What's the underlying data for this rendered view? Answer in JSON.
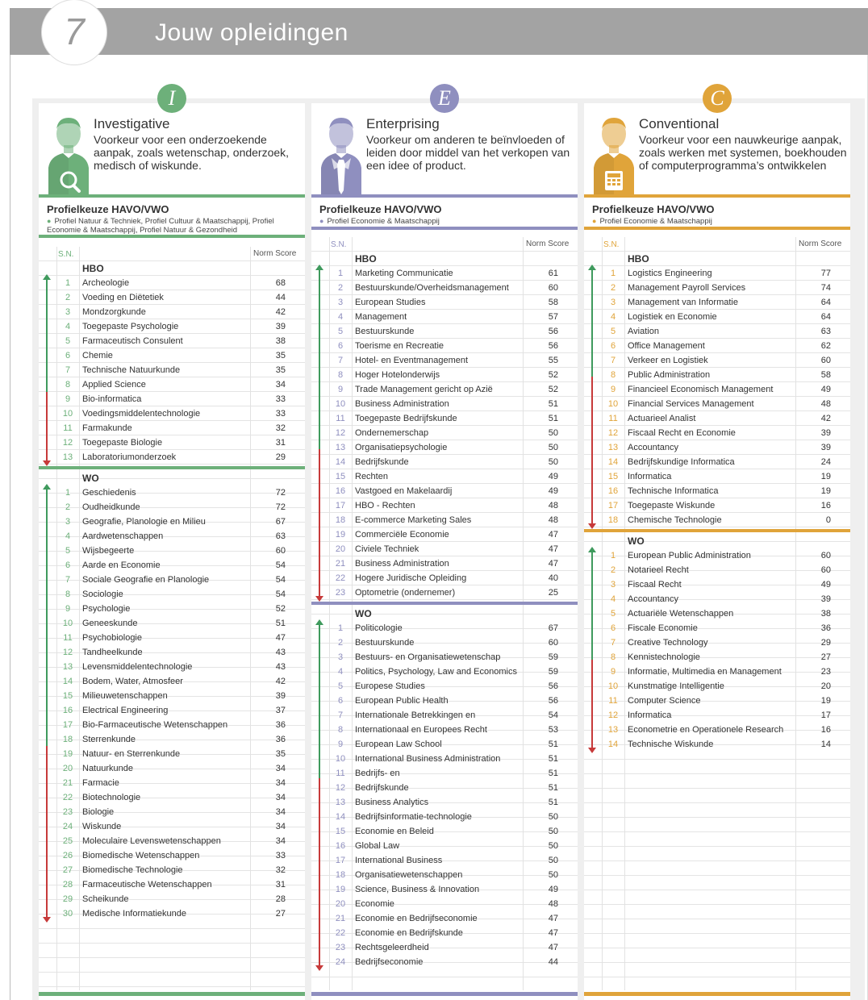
{
  "header": {
    "number": "7",
    "title": "Jouw opleidingen"
  },
  "colors": {
    "I": "#6db07a",
    "E": "#8f8fbf",
    "C": "#e0a43a",
    "red": "#c73a3a",
    "green": "#3f9a5d"
  },
  "table_headers": {
    "sn": "S.N.",
    "norm_score": "Norm Score"
  },
  "columns": [
    {
      "letter": "I",
      "title": "Investigative",
      "description": "Voorkeur voor een onderzoekende aanpak, zoals wetenschap, onderzoek, medisch of wiskunde.",
      "icon": "magnifier-icon",
      "profile_title": "Profielkeuze HAVO/VWO",
      "profile_desc": "Profiel Natuur & Techniek, Profiel Cultuur & Maatschappij, Profiel Economie & Maatschappij, Profiel Natuur & Gezondheid",
      "sections": [
        {
          "name": "HBO",
          "rows": [
            {
              "n": "1",
              "name": "Archeologie",
              "score": "68"
            },
            {
              "n": "2",
              "name": "Voeding en Diëtetiek",
              "score": "44"
            },
            {
              "n": "3",
              "name": "Mondzorgkunde",
              "score": "42"
            },
            {
              "n": "4",
              "name": "Toegepaste Psychologie",
              "score": "39"
            },
            {
              "n": "5",
              "name": "Farmaceutisch Consulent",
              "score": "38"
            },
            {
              "n": "6",
              "name": "Chemie",
              "score": "35"
            },
            {
              "n": "7",
              "name": "Technische Natuurkunde",
              "score": "35"
            },
            {
              "n": "8",
              "name": "Applied Science",
              "score": "34"
            },
            {
              "n": "9",
              "name": "Bio-informatica",
              "score": "33"
            },
            {
              "n": "10",
              "name": "Voedingsmiddelentechnologie",
              "score": "33"
            },
            {
              "n": "11",
              "name": "Farmakunde",
              "score": "32"
            },
            {
              "n": "12",
              "name": "Toegepaste Biologie",
              "score": "31"
            },
            {
              "n": "13",
              "name": "Laboratoriumonderzoek",
              "score": "29"
            }
          ]
        },
        {
          "name": "WO",
          "rows": [
            {
              "n": "1",
              "name": "Geschiedenis",
              "score": "72"
            },
            {
              "n": "2",
              "name": "Oudheidkunde",
              "score": "72"
            },
            {
              "n": "3",
              "name": "Geografie, Planologie en Milieu",
              "score": "67"
            },
            {
              "n": "4",
              "name": "Aardwetenschappen",
              "score": "63"
            },
            {
              "n": "5",
              "name": "Wijsbegeerte",
              "score": "60"
            },
            {
              "n": "6",
              "name": "Aarde en Economie",
              "score": "54"
            },
            {
              "n": "7",
              "name": "Sociale Geografie en Planologie",
              "score": "54"
            },
            {
              "n": "8",
              "name": "Sociologie",
              "score": "54"
            },
            {
              "n": "9",
              "name": "Psychologie",
              "score": "52"
            },
            {
              "n": "10",
              "name": "Geneeskunde",
              "score": "51"
            },
            {
              "n": "11",
              "name": "Psychobiologie",
              "score": "47"
            },
            {
              "n": "12",
              "name": "Tandheelkunde",
              "score": "43"
            },
            {
              "n": "13",
              "name": "Levensmiddelentechnologie",
              "score": "43"
            },
            {
              "n": "14",
              "name": "Bodem, Water, Atmosfeer",
              "score": "42"
            },
            {
              "n": "15",
              "name": "Milieuwetenschappen",
              "score": "39"
            },
            {
              "n": "16",
              "name": "Electrical Engineering",
              "score": "37"
            },
            {
              "n": "17",
              "name": "Bio-Farmaceutische Wetenschappen",
              "score": "36"
            },
            {
              "n": "18",
              "name": "Sterrenkunde",
              "score": "36"
            },
            {
              "n": "19",
              "name": "Natuur- en Sterrenkunde",
              "score": "35"
            },
            {
              "n": "20",
              "name": "Natuurkunde",
              "score": "34"
            },
            {
              "n": "21",
              "name": "Farmacie",
              "score": "34"
            },
            {
              "n": "22",
              "name": "Biotechnologie",
              "score": "34"
            },
            {
              "n": "23",
              "name": "Biologie",
              "score": "34"
            },
            {
              "n": "24",
              "name": "Wiskunde",
              "score": "34"
            },
            {
              "n": "25",
              "name": "Moleculaire Levenswetenschappen",
              "score": "34"
            },
            {
              "n": "26",
              "name": "Biomedische Wetenschappen",
              "score": "33"
            },
            {
              "n": "27",
              "name": "Biomedische Technologie",
              "score": "32"
            },
            {
              "n": "28",
              "name": "Farmaceutische Wetenschappen",
              "score": "31"
            },
            {
              "n": "29",
              "name": "Scheikunde",
              "score": "28"
            },
            {
              "n": "30",
              "name": "Medische Informatiekunde",
              "score": "27"
            }
          ]
        }
      ]
    },
    {
      "letter": "E",
      "title": "Enterprising",
      "description": "Voorkeur om anderen te beïnvloeden of leiden door middel van het verkopen van een idee of product.",
      "icon": "necktie-icon",
      "profile_title": "Profielkeuze HAVO/VWO",
      "profile_desc": "Profiel Economie & Maatschappij",
      "sections": [
        {
          "name": "HBO",
          "rows": [
            {
              "n": "1",
              "name": "Marketing Communicatie",
              "score": "61"
            },
            {
              "n": "2",
              "name": "Bestuurskunde/Overheidsmanagement",
              "score": "60"
            },
            {
              "n": "3",
              "name": "European Studies",
              "score": "58"
            },
            {
              "n": "4",
              "name": "Management",
              "score": "57"
            },
            {
              "n": "5",
              "name": "Bestuurskunde",
              "score": "56"
            },
            {
              "n": "6",
              "name": "Toerisme en Recreatie",
              "score": "56"
            },
            {
              "n": "7",
              "name": "Hotel- en Eventmanagement",
              "score": "55"
            },
            {
              "n": "8",
              "name": "Hoger Hotelonderwijs",
              "score": "52"
            },
            {
              "n": "9",
              "name": "Trade Management gericht op Azië",
              "score": "52"
            },
            {
              "n": "10",
              "name": "Business Administration",
              "score": "51"
            },
            {
              "n": "11",
              "name": "Toegepaste Bedrijfskunde",
              "score": "51"
            },
            {
              "n": "12",
              "name": "Ondernemerschap",
              "score": "50"
            },
            {
              "n": "13",
              "name": "Organisatiepsychologie",
              "score": "50"
            },
            {
              "n": "14",
              "name": "Bedrijfskunde",
              "score": "50"
            },
            {
              "n": "15",
              "name": "Rechten",
              "score": "49"
            },
            {
              "n": "16",
              "name": "Vastgoed en Makelaardij",
              "score": "49"
            },
            {
              "n": "17",
              "name": "HBO - Rechten",
              "score": "48"
            },
            {
              "n": "18",
              "name": "E-commerce Marketing Sales",
              "score": "48"
            },
            {
              "n": "19",
              "name": "Commerciële Economie",
              "score": "47"
            },
            {
              "n": "20",
              "name": "Civiele Techniek",
              "score": "47"
            },
            {
              "n": "21",
              "name": "Business Administration",
              "score": "47"
            },
            {
              "n": "22",
              "name": "Hogere Juridische Opleiding",
              "score": "40"
            },
            {
              "n": "23",
              "name": "Optometrie (ondernemer)",
              "score": "25"
            }
          ]
        },
        {
          "name": "WO",
          "rows": [
            {
              "n": "1",
              "name": "Politicologie",
              "score": "67"
            },
            {
              "n": "2",
              "name": "Bestuurskunde",
              "score": "60"
            },
            {
              "n": "3",
              "name": "Bestuurs- en Organisatiewetenschap",
              "score": "59"
            },
            {
              "n": "4",
              "name": "Politics, Psychology, Law and Economics",
              "score": "59"
            },
            {
              "n": "5",
              "name": "Europese Studies",
              "score": "56"
            },
            {
              "n": "6",
              "name": "European Public Health",
              "score": "56"
            },
            {
              "n": "7",
              "name": "Internationale Betrekkingen en",
              "score": "54"
            },
            {
              "n": "8",
              "name": "Internationaal en Europees Recht",
              "score": "53"
            },
            {
              "n": "9",
              "name": "European Law School",
              "score": "51"
            },
            {
              "n": "10",
              "name": "International Business Administration",
              "score": "51"
            },
            {
              "n": "11",
              "name": "Bedrijfs- en",
              "score": "51"
            },
            {
              "n": "12",
              "name": "Bedrijfskunde",
              "score": "51"
            },
            {
              "n": "13",
              "name": "Business Analytics",
              "score": "51"
            },
            {
              "n": "14",
              "name": "Bedrijfsinformatie-technologie",
              "score": "50"
            },
            {
              "n": "15",
              "name": "Economie en Beleid",
              "score": "50"
            },
            {
              "n": "16",
              "name": "Global Law",
              "score": "50"
            },
            {
              "n": "17",
              "name": "International Business",
              "score": "50"
            },
            {
              "n": "18",
              "name": "Organisatiewetenschappen",
              "score": "50"
            },
            {
              "n": "19",
              "name": "Science, Business & Innovation",
              "score": "49"
            },
            {
              "n": "20",
              "name": "Economie",
              "score": "48"
            },
            {
              "n": "21",
              "name": "Economie en Bedrijfseconomie",
              "score": "47"
            },
            {
              "n": "22",
              "name": "Economie en Bedrijfskunde",
              "score": "47"
            },
            {
              "n": "23",
              "name": "Rechtsgeleerdheid",
              "score": "47"
            },
            {
              "n": "24",
              "name": "Bedrijfseconomie",
              "score": "44"
            }
          ]
        }
      ]
    },
    {
      "letter": "C",
      "title": "Conventional",
      "description": "Voorkeur voor een nauwkeurige aanpak, zoals werken met systemen, boekhouden of computerprogramma’s ontwikkelen",
      "icon": "calculator-icon",
      "profile_title": "Profielkeuze HAVO/VWO",
      "profile_desc": "Profiel Economie & Maatschappij",
      "sections": [
        {
          "name": "HBO",
          "rows": [
            {
              "n": "1",
              "name": "Logistics Engineering",
              "score": "77"
            },
            {
              "n": "2",
              "name": "Management Payroll Services",
              "score": "74"
            },
            {
              "n": "3",
              "name": "Management van Informatie",
              "score": "64"
            },
            {
              "n": "4",
              "name": "Logistiek en Economie",
              "score": "64"
            },
            {
              "n": "5",
              "name": "Aviation",
              "score": "63"
            },
            {
              "n": "6",
              "name": "Office Management",
              "score": "62"
            },
            {
              "n": "7",
              "name": "Verkeer en Logistiek",
              "score": "60"
            },
            {
              "n": "8",
              "name": "Public Administration",
              "score": "58"
            },
            {
              "n": "9",
              "name": "Financieel Economisch Management",
              "score": "49"
            },
            {
              "n": "10",
              "name": "Financial Services Management",
              "score": "48"
            },
            {
              "n": "11",
              "name": "Actuarieel Analist",
              "score": "42"
            },
            {
              "n": "12",
              "name": "Fiscaal Recht en Economie",
              "score": "39"
            },
            {
              "n": "13",
              "name": "Accountancy",
              "score": "39"
            },
            {
              "n": "14",
              "name": "Bedrijfskundige Informatica",
              "score": "24"
            },
            {
              "n": "15",
              "name": "Informatica",
              "score": "19"
            },
            {
              "n": "16",
              "name": "Technische Informatica",
              "score": "19"
            },
            {
              "n": "17",
              "name": "Toegepaste Wiskunde",
              "score": "16"
            },
            {
              "n": "18",
              "name": "Chemische Technologie",
              "score": "0"
            }
          ]
        },
        {
          "name": "WO",
          "rows": [
            {
              "n": "1",
              "name": "European Public Administration",
              "score": "60"
            },
            {
              "n": "2",
              "name": "Notarieel Recht",
              "score": "60"
            },
            {
              "n": "3",
              "name": "Fiscaal Recht",
              "score": "49"
            },
            {
              "n": "4",
              "name": "Accountancy",
              "score": "39"
            },
            {
              "n": "5",
              "name": "Actuariële Wetenschappen",
              "score": "38"
            },
            {
              "n": "6",
              "name": "Fiscale Economie",
              "score": "36"
            },
            {
              "n": "7",
              "name": "Creative Technology",
              "score": "29"
            },
            {
              "n": "8",
              "name": "Kennistechnologie",
              "score": "27"
            },
            {
              "n": "9",
              "name": "Informatie, Multimedia en Management",
              "score": "23"
            },
            {
              "n": "10",
              "name": "Kunstmatige Intelligentie",
              "score": "20"
            },
            {
              "n": "11",
              "name": "Computer Science",
              "score": "19"
            },
            {
              "n": "12",
              "name": "Informatica",
              "score": "17"
            },
            {
              "n": "13",
              "name": "Econometrie en Operationele Research",
              "score": "16"
            },
            {
              "n": "14",
              "name": "Technische Wiskunde",
              "score": "14"
            }
          ]
        }
      ]
    }
  ]
}
